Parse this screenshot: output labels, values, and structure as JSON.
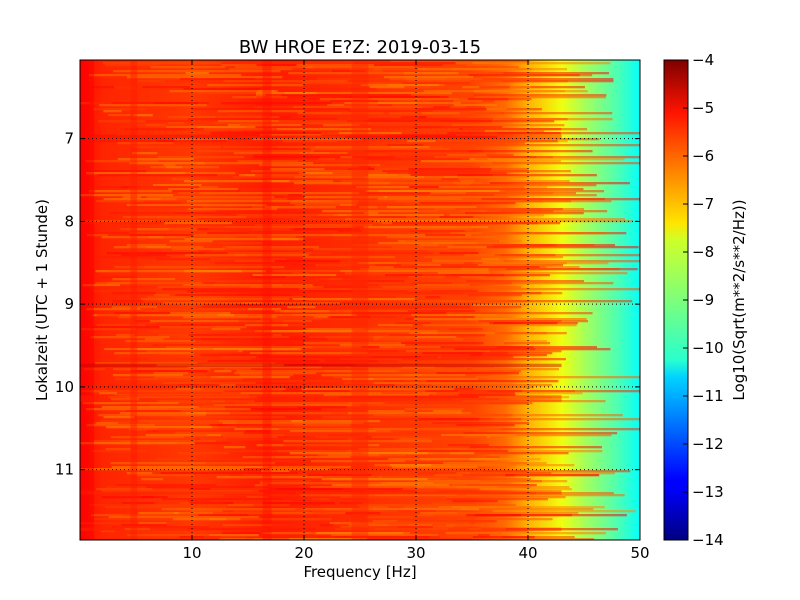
{
  "chart_data": {
    "type": "heatmap",
    "title": "BW HROE E?Z: 2019-03-15",
    "xlabel": "Frequency [Hz]",
    "ylabel": "Lokalzeit (UTC + 1 Stunde)",
    "xlim": [
      0,
      50
    ],
    "ylim": [
      11.85,
      6.05
    ],
    "y_inverted": true,
    "x_ticks": [
      10,
      20,
      30,
      40,
      50
    ],
    "y_ticks": [
      7,
      8,
      9,
      10,
      11
    ],
    "grid": "dotted",
    "colorbar": {
      "label": "Log10(Sqrt(m**2/s**2/Hz))",
      "range": [
        -14,
        -4
      ],
      "ticks": [
        -4,
        -5,
        -6,
        -7,
        -8,
        -9,
        -10,
        -11,
        -12,
        -13,
        -14
      ],
      "colormap": "jet",
      "stops": [
        "#00007f",
        "#0000ff",
        "#00ffff",
        "#ffff00",
        "#ff0000",
        "#7f0000"
      ]
    },
    "spectrum_profile": [
      {
        "freq": 0,
        "value": -5.3
      },
      {
        "freq": 2,
        "value": -5.6
      },
      {
        "freq": 10,
        "value": -5.8
      },
      {
        "freq": 16.7,
        "value": -5.5
      },
      {
        "freq": 25,
        "value": -5.7
      },
      {
        "freq": 35,
        "value": -5.9
      },
      {
        "freq": 38,
        "value": -6.3
      },
      {
        "freq": 40,
        "value": -7.0
      },
      {
        "freq": 43,
        "value": -7.9
      },
      {
        "freq": 45,
        "value": -8.6
      },
      {
        "freq": 48,
        "value": -9.5
      },
      {
        "freq": 50,
        "value": -10.2
      }
    ]
  }
}
